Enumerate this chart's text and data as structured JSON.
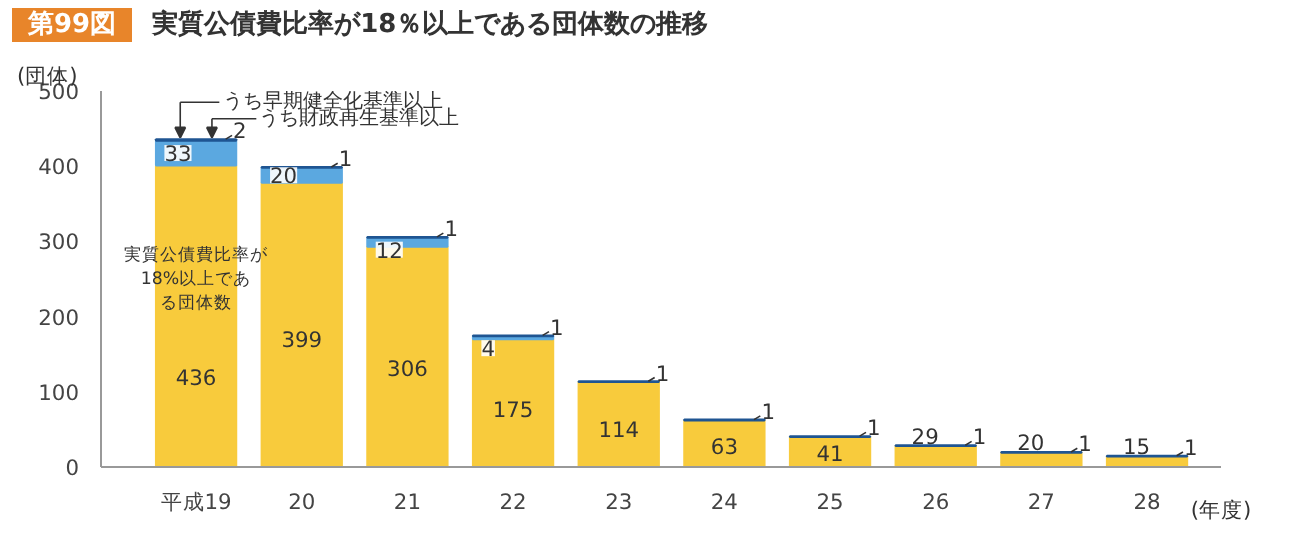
{
  "chart_data": {
    "type": "bar",
    "stacked": true,
    "title": "実質公債費比率が18％以上である団体数の推移",
    "annotations": [
      "第99図"
    ],
    "ylabel": "(団体)",
    "xlabel": "(年度)",
    "categories": [
      "平成19",
      "20",
      "21",
      "22",
      "23",
      "24",
      "25",
      "26",
      "27",
      "28"
    ],
    "ylim": [
      0,
      500
    ],
    "yticks": [
      0,
      100,
      200,
      300,
      400,
      500
    ],
    "grid": false,
    "totals": [
      "436",
      "399",
      "306",
      "175",
      "114",
      "63",
      "41",
      "29",
      "20",
      "15"
    ],
    "series": [
      {
        "name": "実質公債費比率が18%以上である団体数",
        "color": "#f8cb3c",
        "values": [
          401,
          378,
          293,
          170,
          113,
          62,
          40,
          28,
          19,
          14
        ]
      },
      {
        "name": "うち早期健全化基準以上",
        "color": "#5ba8e0",
        "values": [
          33,
          20,
          12,
          4,
          null,
          null,
          null,
          null,
          null,
          null
        ],
        "value_labels": [
          "33",
          "20",
          "12",
          "4",
          null,
          null,
          null,
          null,
          null,
          null
        ]
      },
      {
        "name": "うち財政再生基準以上",
        "color": "#1f5592",
        "values": [
          2,
          1,
          1,
          1,
          1,
          1,
          1,
          1,
          1,
          1
        ],
        "value_labels": [
          "2",
          "1",
          "1",
          "1",
          "1",
          "1",
          "1",
          "1",
          "1",
          "1"
        ]
      }
    ]
  }
}
